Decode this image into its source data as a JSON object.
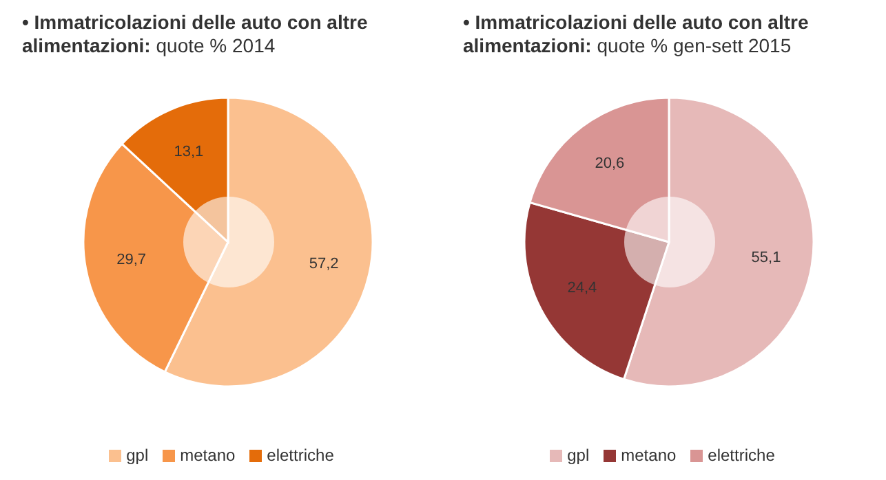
{
  "chart_data": [
    {
      "type": "donut",
      "title": "• Immatricolazioni delle auto con altre alimentazioni:",
      "subtitle": "quote % 2014",
      "categories": [
        "gpl",
        "metano",
        "elettriche"
      ],
      "values": [
        57.2,
        29.7,
        13.1
      ],
      "value_labels": [
        "57,2",
        "29,7",
        "13,1"
      ],
      "colors": [
        "#fbc08f",
        "#f7964a",
        "#e46c0a"
      ],
      "legend": "bottom"
    },
    {
      "type": "donut",
      "title": "• Immatricolazioni delle auto con altre alimentazioni:",
      "subtitle": "quote % gen-sett 2015",
      "categories": [
        "gpl",
        "metano",
        "elettriche"
      ],
      "values": [
        55.1,
        24.4,
        20.6
      ],
      "value_labels": [
        "55,1",
        "24,4",
        "20,6"
      ],
      "colors": [
        "#e6b9b8",
        "#953735",
        "#d99594"
      ],
      "legend": "bottom"
    }
  ]
}
